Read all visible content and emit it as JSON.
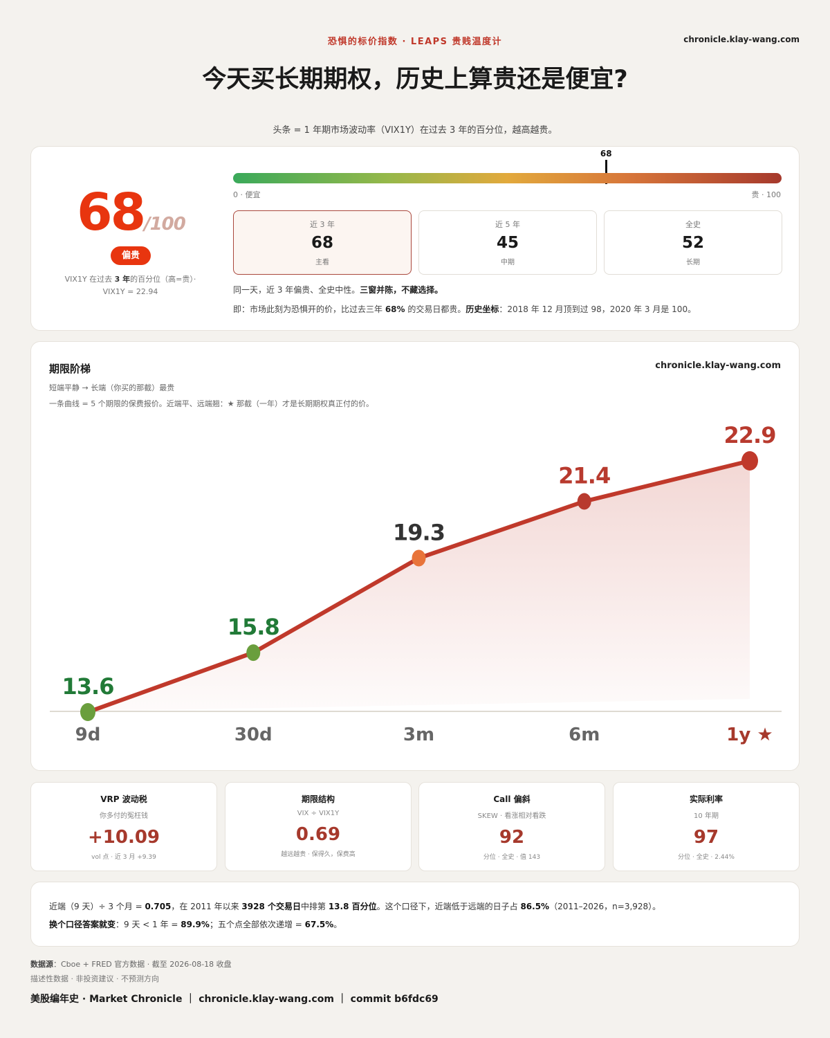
{
  "header": {
    "kicker": "恐惧的标价指数 · LEAPS 贵贱温度计",
    "site": "chronicle.klay-wang.com",
    "title": "今天买长期期权，历史上算贵还是便宜?",
    "lede": "头条 = 1 年期市场波动率（VIX1Y）在过去 3 年的百分位，越高越贵。"
  },
  "gauge": {
    "score": "68",
    "denom": "/100",
    "badge": "偏贵",
    "caption_pre": "VIX1Y 在过去 ",
    "caption_bold": "3 年",
    "caption_post": "的百分位（高=贵）·",
    "caption_line2": "VIX1Y = 22.94",
    "marker_value": 68,
    "marker_label": "68",
    "left_label": "0 · 便宜",
    "right_label": "贵 · 100",
    "gradient_colors": [
      "#3aa95a",
      "#95b84a",
      "#e2a93c",
      "#d7763a",
      "#a6392c"
    ],
    "windows": [
      {
        "title": "近 3 年",
        "value": "68",
        "sub": "主看",
        "active": true
      },
      {
        "title": "近 5 年",
        "value": "45",
        "sub": "中期",
        "active": false
      },
      {
        "title": "全史",
        "value": "52",
        "sub": "长期",
        "active": false
      }
    ],
    "note1_pre": "同一天，近 3 年偏贵、全史中性。",
    "note1_bold": "三窗并陈，不藏选择。",
    "note2_pre": "即：市场此刻为恐惧开的价，比过去三年 ",
    "note2_b1": "68%",
    "note2_mid": " 的交易日都贵。",
    "note2_b2": "历史坐标",
    "note2_post": "：2018 年 12 月顶到过 98，2020 年 3 月是 100。"
  },
  "term": {
    "title": "期限阶梯",
    "site": "chronicle.klay-wang.com",
    "sub1": "短端平静 → 长端（你买的那截）最贵",
    "sub2": "一条曲线 = 5 个期限的保费报价。近端平、远端翘：★ 那截（一年）才是长期期权真正付的价。"
  },
  "chart_data": {
    "type": "line",
    "categories": [
      "9d",
      "30d",
      "3m",
      "6m",
      "1y ★"
    ],
    "series": [
      {
        "values": [
          13.6,
          15.8,
          19.3,
          21.4,
          22.9
        ]
      }
    ],
    "data_labels": [
      "13.6",
      "15.8",
      "19.3",
      "21.4",
      "22.9"
    ],
    "point_colors": [
      "#6a9e3d",
      "#6a9e3d",
      "#e8743a",
      "#b83a2e",
      "#c0392b"
    ],
    "label_colors": [
      "#217a37",
      "#217a37",
      "#333333",
      "#b83a2e",
      "#b83a2e"
    ],
    "tick_colors": [
      "#666666",
      "#666666",
      "#666666",
      "#666666",
      "#a6392c"
    ],
    "line_color": "#c0392b",
    "grid": false
  },
  "stats": [
    {
      "title": "VRP 波动税",
      "sub": "你多付的冤枉钱",
      "value": "+10.09",
      "foot": "vol 点 · 近 3 月 +9.39"
    },
    {
      "title": "期限结构",
      "sub": "VIX ÷ VIX1Y",
      "value": "0.69",
      "foot": "越远越贵 · 保得久，保费高"
    },
    {
      "title": "Call 偏斜",
      "sub": "SKEW · 看涨相对看跌",
      "value": "92",
      "foot": "分位 · 全史 · 值 143"
    },
    {
      "title": "实际利率",
      "sub": "10 年期",
      "value": "97",
      "foot": "分位 · 全史 · 2.44%"
    }
  ],
  "ratio_note": {
    "l1_a": "近端（9 天）÷ 3 个月 = ",
    "l1_b": "0.705",
    "l1_c": "，在 2011 年以来 ",
    "l1_d": "3928 个交易日",
    "l1_e": "中排第 ",
    "l1_f": "13.8 百分位",
    "l1_g": "。这个口径下，近端低于远端的日子占 ",
    "l1_h": "86.5%",
    "l1_i": "（2011–2026，n=3,928）。",
    "l2_a": "换个口径答案就变",
    "l2_b": "：9 天 < 1 年 = ",
    "l2_c": "89.9%",
    "l2_d": "；五个点全部依次递增 = ",
    "l2_e": "67.5%",
    "l2_f": "。"
  },
  "footer": {
    "src_label": "数据源",
    "src_text": "：Cboe + FRED 官方数据 · 截至 2026-08-18 收盘",
    "disclaimer": "描述性数据 · 非投资建议 · 不预测方向",
    "brand": "美股编年史 · Market Chronicle ｜ chronicle.klay-wang.com ｜ commit b6fdc69"
  }
}
